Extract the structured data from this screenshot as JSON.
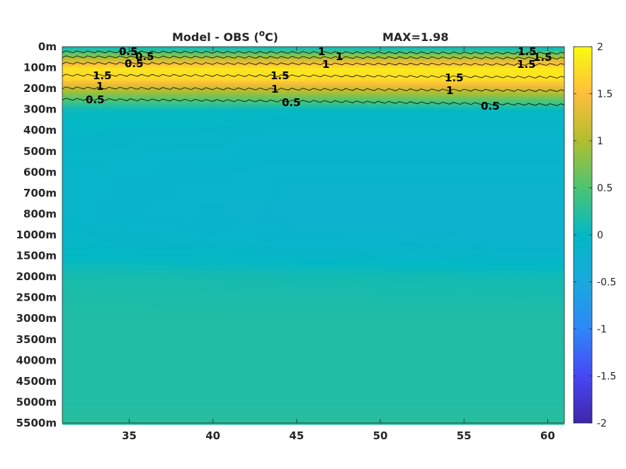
{
  "chart_data": {
    "type": "heatmap",
    "title": "Model - OBS (°C)",
    "title_main": "Model - OBS (",
    "title_sup": "o",
    "title_tail": "C)",
    "annotation": "MAX=1.98",
    "xlabel": "",
    "ylabel": "",
    "xlim": [
      31,
      61
    ],
    "x_ticks": [
      35,
      40,
      45,
      50,
      55,
      60
    ],
    "x_tick_labels": [
      "35",
      "40",
      "45",
      "50",
      "55",
      "60"
    ],
    "y_tick_labels": [
      "0m",
      "100m",
      "200m",
      "300m",
      "400m",
      "500m",
      "600m",
      "700m",
      "800m",
      "1000m",
      "1500m",
      "2000m",
      "2500m",
      "3000m",
      "3500m",
      "4000m",
      "4500m",
      "5000m",
      "5500m"
    ],
    "colorbar": {
      "range": [
        -2,
        2
      ],
      "ticks": [
        2,
        1.5,
        1,
        0.5,
        0,
        -0.5,
        -1,
        -1.5,
        -2
      ],
      "tick_labels": [
        "2",
        "1.5",
        "1",
        "0.5",
        "0",
        "-0.5",
        "-1",
        "-1.5",
        "-2"
      ],
      "colormap": "parula"
    },
    "profiles": [
      {
        "depth": "0m",
        "x": [
          31,
          46,
          61
        ],
        "values": [
          0.1,
          0.1,
          0.05
        ]
      },
      {
        "depth": "50m",
        "x": [
          31,
          46,
          61
        ],
        "values": [
          1.0,
          1.05,
          1.1
        ]
      },
      {
        "depth": "100m",
        "x": [
          31,
          46,
          61
        ],
        "values": [
          1.8,
          1.85,
          1.85
        ]
      },
      {
        "depth": "150m",
        "x": [
          31,
          46,
          61
        ],
        "values": [
          1.7,
          1.75,
          1.8
        ]
      },
      {
        "depth": "200m",
        "x": [
          31,
          46,
          61
        ],
        "values": [
          1.0,
          1.1,
          1.2
        ]
      },
      {
        "depth": "250m",
        "x": [
          31,
          46,
          61
        ],
        "values": [
          0.5,
          0.55,
          0.6
        ]
      },
      {
        "depth": "300m",
        "x": [
          31,
          46,
          61
        ],
        "values": [
          0.05,
          0.0,
          0.0
        ]
      },
      {
        "depth": "400m",
        "x": [
          31,
          46,
          61
        ],
        "values": [
          -0.05,
          -0.1,
          -0.1
        ]
      },
      {
        "depth": "600m",
        "x": [
          31,
          46,
          61
        ],
        "values": [
          -0.1,
          -0.15,
          -0.15
        ]
      },
      {
        "depth": "800m",
        "x": [
          31,
          46,
          61
        ],
        "values": [
          -0.1,
          -0.2,
          -0.2
        ]
      },
      {
        "depth": "1000m",
        "x": [
          31,
          46,
          61
        ],
        "values": [
          -0.05,
          -0.15,
          -0.2
        ]
      },
      {
        "depth": "1500m",
        "x": [
          31,
          46,
          61
        ],
        "values": [
          0.0,
          -0.05,
          -0.1
        ]
      },
      {
        "depth": "2000m",
        "x": [
          31,
          46,
          61
        ],
        "values": [
          0.15,
          0.12,
          0.1
        ]
      },
      {
        "depth": "3000m",
        "x": [
          31,
          46,
          61
        ],
        "values": [
          0.2,
          0.2,
          0.2
        ]
      },
      {
        "depth": "5000m",
        "x": [
          31,
          46,
          61
        ],
        "values": [
          0.2,
          0.2,
          0.2
        ]
      },
      {
        "depth": "5500m",
        "x": [
          31,
          46,
          61
        ],
        "values": [
          0.25,
          0.25,
          0.25
        ]
      }
    ],
    "contour_labels": [
      "0.5",
      "1",
      "1.5",
      "0.5",
      "1",
      "1.5",
      "0.5",
      "1",
      "1.5",
      "1.5",
      "1",
      "0.5",
      "1.5",
      "1",
      "0.5",
      "1.5",
      "1",
      "0.5"
    ],
    "grid": false,
    "legend": "none"
  }
}
